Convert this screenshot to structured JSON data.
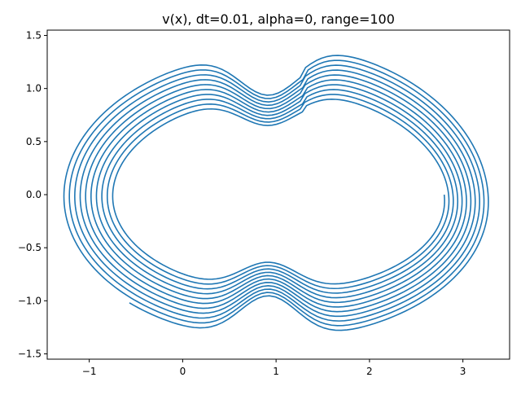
{
  "chart_data": {
    "type": "line",
    "title": "v(x), dt=0.01, alpha=0, range=100",
    "xlabel": "",
    "ylabel": "",
    "xlim": [
      -1.45,
      3.5
    ],
    "ylim": [
      -1.55,
      1.55
    ],
    "x_ticks": [
      -1,
      0,
      1,
      2,
      3
    ],
    "y_ticks": [
      -1.5,
      -1.0,
      -0.5,
      0.0,
      0.5,
      1.0,
      1.5
    ],
    "x_tick_labels": [
      "−1",
      "0",
      "1",
      "2",
      "3"
    ],
    "y_tick_labels": [
      "−1.5",
      "−1.0",
      "−0.5",
      "0.0",
      "0.5",
      "1.0",
      "1.5"
    ],
    "grid": false,
    "legend": "none",
    "series_color": "#1f77b4",
    "orbit": {
      "loops": 10,
      "left_x_outer": -1.3,
      "left_x_inner": -0.72,
      "right_x_outer": 3.27,
      "right_x_inner": 2.8,
      "start_point": [
        2.8,
        0.0
      ],
      "end_point": [
        1.72,
        1.38
      ]
    },
    "series": [
      {
        "values": [
          [
            2.8,
            0.0
          ],
          [
            2.78,
            -0.5
          ],
          [
            2.55,
            -0.82
          ],
          [
            2.2,
            -1.05
          ],
          [
            1.95,
            -1.09
          ],
          [
            1.6,
            -1.0
          ],
          [
            1.2,
            -0.75
          ],
          [
            0.91,
            -0.6
          ],
          [
            0.6,
            -0.76
          ],
          [
            0.3,
            -0.88
          ],
          [
            0.05,
            -0.89
          ],
          [
            -0.2,
            -0.8
          ],
          [
            -0.55,
            -0.5
          ],
          [
            -0.72,
            0.0
          ],
          [
            -0.6,
            0.5
          ],
          [
            -0.3,
            0.82
          ],
          [
            0.05,
            0.91
          ],
          [
            0.4,
            0.84
          ],
          [
            0.7,
            0.68
          ],
          [
            0.91,
            0.63
          ],
          [
            1.2,
            0.75
          ],
          [
            1.6,
            1.02
          ],
          [
            1.95,
            1.11
          ],
          [
            2.3,
            1.02
          ],
          [
            2.7,
            0.55
          ],
          [
            2.85,
            0.0
          ],
          [
            2.85,
            0.0
          ],
          [
            2.83,
            -0.52
          ],
          [
            2.6,
            -0.85
          ],
          [
            2.2,
            -1.08
          ],
          [
            1.95,
            -1.12
          ],
          [
            1.6,
            -1.03
          ],
          [
            1.2,
            -0.78
          ],
          [
            0.91,
            -0.64
          ],
          [
            0.6,
            -0.8
          ],
          [
            0.3,
            -0.92
          ],
          [
            0.05,
            -0.93
          ],
          [
            -0.2,
            -0.84
          ],
          [
            -0.6,
            -0.52
          ],
          [
            -0.78,
            0.0
          ],
          [
            -0.65,
            0.53
          ],
          [
            -0.33,
            0.86
          ],
          [
            0.05,
            0.95
          ],
          [
            0.4,
            0.88
          ],
          [
            0.7,
            0.72
          ],
          [
            0.91,
            0.68
          ],
          [
            1.2,
            0.8
          ],
          [
            1.6,
            1.06
          ],
          [
            1.95,
            1.15
          ],
          [
            2.3,
            1.06
          ],
          [
            2.75,
            0.57
          ],
          [
            2.9,
            0.0
          ]
        ]
      }
    ]
  }
}
